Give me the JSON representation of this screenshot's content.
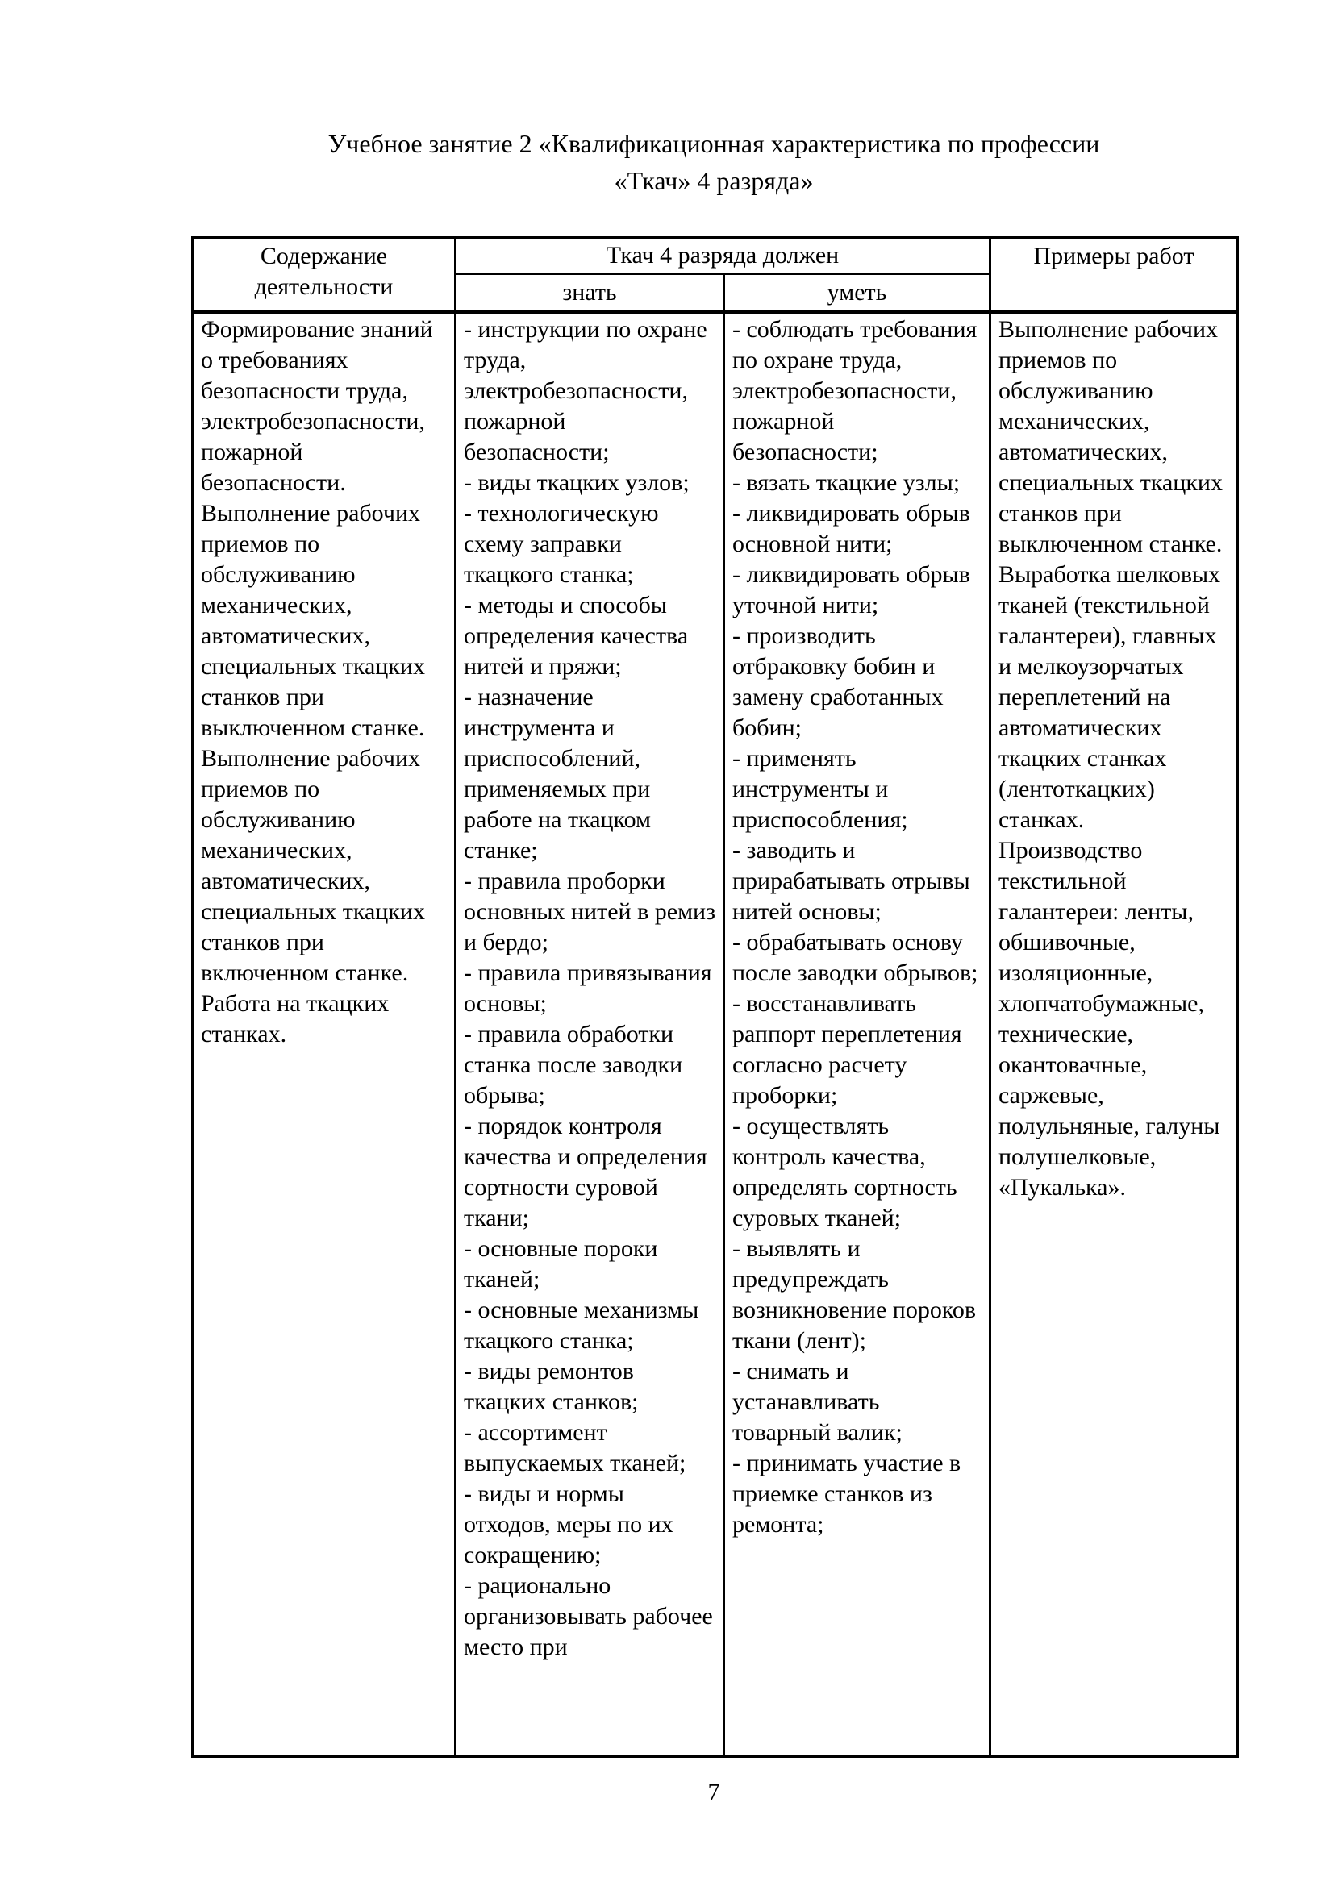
{
  "document": {
    "title_line1": "Учебное занятие 2 «Квалификационная характеристика по профессии",
    "title_line2": "«Ткач» 4 разряда»",
    "page_number": "7"
  },
  "table": {
    "headers": {
      "activity": "Содержание деятельности",
      "must": "Ткач 4 разряда должен",
      "know": "знать",
      "able": "уметь",
      "examples": "Примеры работ"
    },
    "row": {
      "activity": [
        "Формирование знаний о требованиях безопасности труда, электробезопасности, пожарной безопасности.",
        "Выполнение рабочих приемов по обслуживанию механических, автоматических, специальных ткацких станков при выключенном станке.",
        "Выполнение рабочих приемов по обслуживанию механических, автоматических, специальных ткацких станков при включенном станке.",
        "Работа на ткацких станках."
      ],
      "know": [
        "- инструкции по охране труда, электробезопасности, пожарной безопасности;",
        "- виды ткацких узлов;",
        "- технологическую схему заправки ткацкого станка;",
        "- методы и способы определения качества нитей и пряжи;",
        "- назначение инструмента и приспособлений, применяемых при работе на ткацком станке;",
        "- правила проборки основных нитей в ремиз и бердо;",
        "- правила привязывания основы;",
        "- правила обработки станка после заводки обрыва;",
        "- порядок контроля качества и определения сортности суровой ткани;",
        "- основные пороки тканей;",
        "- основные механизмы ткацкого станка;",
        "- виды ремонтов ткацких станков;",
        "- ассортимент выпускаемых тканей;",
        "- виды и нормы отходов, меры по их сокращению;",
        "- рационально организовывать рабочее место при"
      ],
      "able": [
        "- соблюдать требования по охране труда, электробезопасности, пожарной безопасности;",
        "- вязать ткацкие узлы;",
        "- ликвидировать обрыв основной нити;",
        "- ликвидировать обрыв уточной нити;",
        "- производить отбраковку бобин и замену сработанных бобин;",
        "- применять инструменты и приспособления;",
        "- заводить и прирабатывать отрывы нитей основы;",
        "- обрабатывать основу после заводки обрывов;",
        "- восстанавливать раппорт переплетения согласно расчету проборки;",
        "- осуществлять контроль качества, определять сортность суровых тканей;",
        "- выявлять и предупреждать возникновение пороков ткани (лент);",
        "- снимать и устанавливать товарный валик;",
        "- принимать участие в приемке станков из ремонта;"
      ],
      "examples": [
        "Выполнение рабочих приемов по обслуживанию механических, автоматических, специальных ткацких станков при выключенном станке.",
        "Выработка шелковых тканей (текстильной галантереи), главных и мелкоузорчатых переплетений на автоматических ткацких станках (лентоткацких) станках.",
        "Производство текстильной галантереи: ленты, обшивочные, изоляционные, хлопчатобумажные, технические, окантовачные, саржевые, полульняные, галуны полушелковые, «Пукалька»."
      ]
    }
  }
}
